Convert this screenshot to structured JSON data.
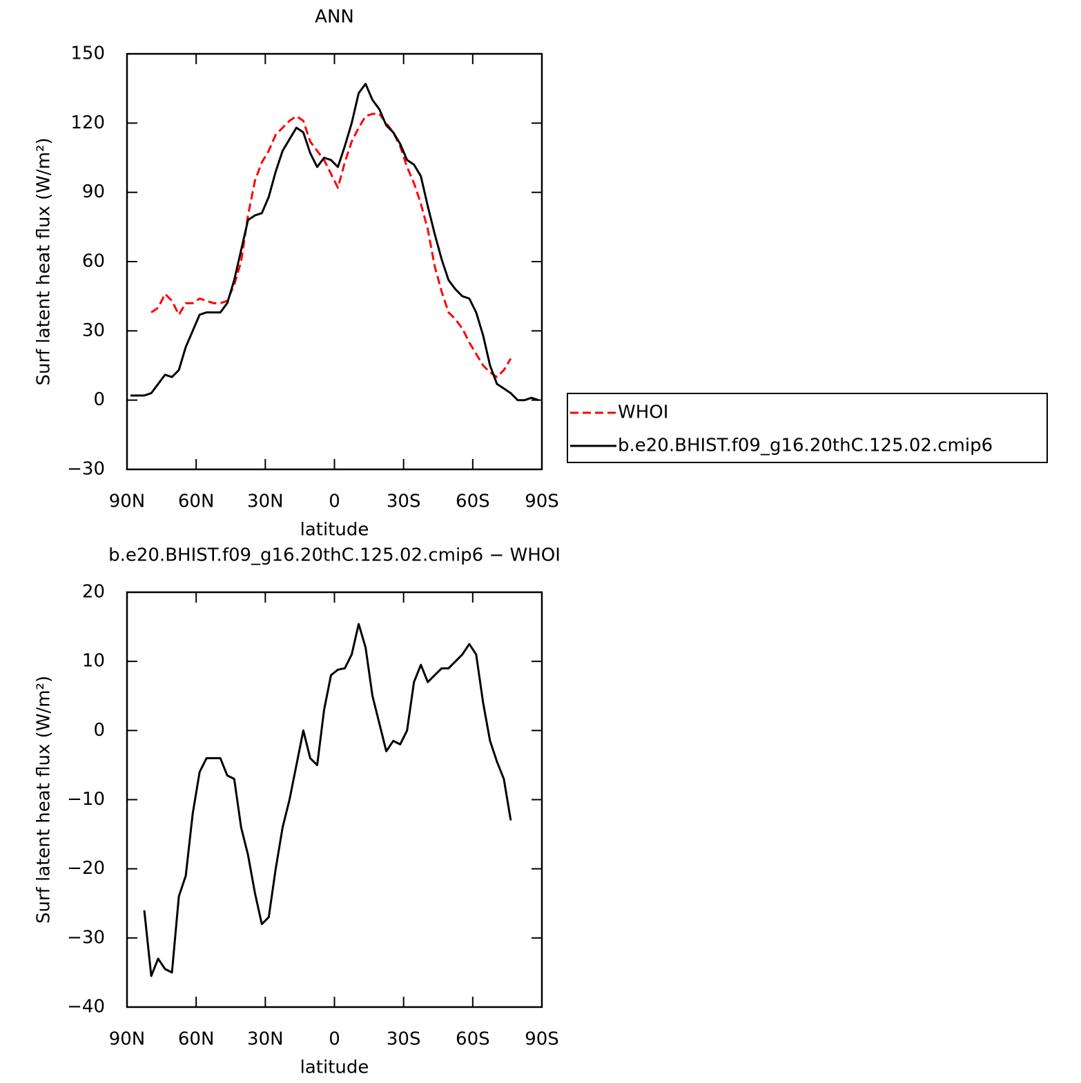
{
  "chart_data": [
    {
      "type": "line",
      "title": "ANN",
      "x_label": "latitude",
      "y_label": "Surf latent heat flux (W/m²)",
      "x": [
        88.5,
        85.5,
        82.5,
        79.5,
        76.5,
        73.5,
        70.5,
        67.5,
        64.5,
        61.5,
        58.5,
        55.5,
        52.5,
        49.5,
        46.5,
        43.5,
        40.5,
        37.5,
        34.5,
        31.5,
        28.5,
        25.5,
        22.5,
        19.5,
        16.5,
        13.5,
        10.5,
        7.5,
        4.5,
        1.5,
        -1.5,
        -4.5,
        -7.5,
        -10.5,
        -13.5,
        -16.5,
        -19.5,
        -22.5,
        -25.5,
        -28.5,
        -31.5,
        -34.5,
        -37.5,
        -40.5,
        -43.5,
        -46.5,
        -49.5,
        -52.5,
        -55.5,
        -58.5,
        -61.5,
        -64.5,
        -67.5,
        -70.5,
        -73.5,
        -76.5,
        -79.5,
        -82.5,
        -85.5,
        -88.5
      ],
      "xlim": [
        90,
        -90
      ],
      "xticks": [
        {
          "value": 90,
          "label": "90N"
        },
        {
          "value": 60,
          "label": "60N"
        },
        {
          "value": 30,
          "label": "30N"
        },
        0,
        {
          "value": -30,
          "label": "30S"
        },
        {
          "value": -60,
          "label": "60S"
        },
        {
          "value": -90,
          "label": "90S"
        }
      ],
      "ylim": [
        -30,
        150
      ],
      "yticks": [
        {
          "value": -30,
          "label": "−30"
        },
        0,
        30,
        60,
        90,
        120,
        150
      ],
      "legend": "outside-right",
      "series": [
        {
          "name": "WHOI",
          "color": "#ff0000",
          "style": "dashed",
          "values": [
            null,
            null,
            null,
            38,
            40,
            46,
            43,
            37,
            42,
            42,
            44,
            43,
            42,
            42,
            43,
            50,
            60,
            80,
            95,
            103,
            108,
            115,
            118,
            121,
            123,
            121,
            112,
            108,
            104,
            98,
            92,
            103,
            112,
            118,
            123,
            124,
            124,
            120,
            116,
            110,
            101,
            94,
            85,
            74,
            58,
            47,
            38,
            35,
            31,
            25,
            20,
            15,
            12,
            10,
            13,
            18,
            null,
            null,
            null,
            null
          ]
        },
        {
          "name": "b.e20.BHIST.f09_g16.20thC.125.02.cmip6",
          "color": "#000000",
          "style": "solid",
          "values": [
            2,
            2,
            2,
            3,
            7,
            11,
            10,
            13,
            23,
            30,
            37,
            38,
            38,
            38,
            42,
            52,
            65,
            78,
            80,
            81,
            88,
            99,
            108,
            113,
            118,
            116,
            107,
            101,
            105,
            104,
            101,
            110,
            120,
            133,
            137,
            130,
            126,
            119,
            116,
            111,
            104,
            102,
            97,
            84,
            72,
            61,
            52,
            48,
            45,
            44,
            38,
            28,
            15,
            7,
            5,
            3,
            0,
            0,
            1,
            0
          ]
        }
      ]
    },
    {
      "type": "line",
      "title": "b.e20.BHIST.f09_g16.20thC.125.02.cmip6 − WHOI",
      "x_label": "latitude",
      "y_label": "Surf latent heat flux (W/m²)",
      "x": [
        88.5,
        85.5,
        82.5,
        79.5,
        76.5,
        73.5,
        70.5,
        67.5,
        64.5,
        61.5,
        58.5,
        55.5,
        52.5,
        49.5,
        46.5,
        43.5,
        40.5,
        37.5,
        34.5,
        31.5,
        28.5,
        25.5,
        22.5,
        19.5,
        16.5,
        13.5,
        10.5,
        7.5,
        4.5,
        1.5,
        -1.5,
        -4.5,
        -7.5,
        -10.5,
        -13.5,
        -16.5,
        -19.5,
        -22.5,
        -25.5,
        -28.5,
        -31.5,
        -34.5,
        -37.5,
        -40.5,
        -43.5,
        -46.5,
        -49.5,
        -52.5,
        -55.5,
        -58.5,
        -61.5,
        -64.5,
        -67.5,
        -70.5,
        -73.5,
        -76.5,
        -79.5,
        -82.5,
        -85.5,
        -88.5
      ],
      "xlim": [
        90,
        -90
      ],
      "xticks": [
        {
          "value": 90,
          "label": "90N"
        },
        {
          "value": 60,
          "label": "60N"
        },
        {
          "value": 30,
          "label": "30N"
        },
        0,
        {
          "value": -30,
          "label": "30S"
        },
        {
          "value": -60,
          "label": "60S"
        },
        {
          "value": -90,
          "label": "90S"
        }
      ],
      "ylim": [
        -40,
        20
      ],
      "yticks": [
        {
          "value": -40,
          "label": "−40"
        },
        {
          "value": -30,
          "label": "−30"
        },
        {
          "value": -20,
          "label": "−20"
        },
        {
          "value": -10,
          "label": "−10"
        },
        0,
        10,
        20
      ],
      "series": [
        {
          "color": "#000000",
          "style": "solid",
          "values": [
            null,
            null,
            -26,
            -35.5,
            -33,
            -34.5,
            -35,
            -24,
            -21,
            -12,
            -6,
            -4,
            -4,
            -4,
            -6.5,
            -7,
            -14,
            -18,
            -23.5,
            -28,
            -27,
            -20,
            -14,
            -10,
            -5,
            0,
            -4,
            -5,
            3,
            8,
            8.8,
            9,
            11,
            15.4,
            12,
            5,
            1,
            -3,
            -1.5,
            -2,
            0,
            7,
            9.5,
            7,
            8,
            9,
            9,
            10,
            11,
            12.5,
            11,
            4,
            -1.5,
            -4.5,
            -7,
            -13,
            null,
            null,
            null,
            null
          ]
        }
      ]
    }
  ]
}
